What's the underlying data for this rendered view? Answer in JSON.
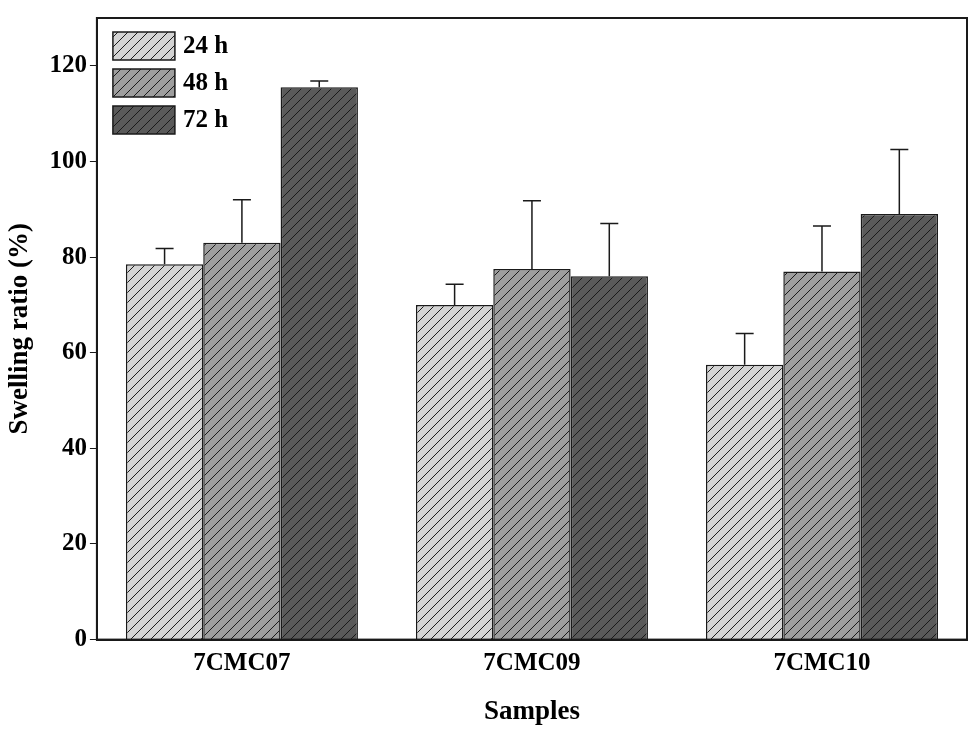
{
  "chart_data": {
    "type": "bar",
    "x_label": "Samples",
    "y_label": "Swelling ratio (%)",
    "categories": [
      "7CMC07",
      "7CMC09",
      "7CMC10"
    ],
    "series": [
      {
        "name": "24 h",
        "color": "#d4d4d4",
        "values": [
          78.5,
          70,
          57.5
        ],
        "errors": [
          3.3,
          4.3,
          6.5
        ]
      },
      {
        "name": "48 h",
        "color": "#9e9e9e",
        "values": [
          83,
          77.5,
          77
        ],
        "errors": [
          9,
          14.3,
          9.5
        ]
      },
      {
        "name": "72 h",
        "color": "#5a5a5a",
        "values": [
          115.5,
          76,
          89
        ],
        "errors": [
          1.3,
          11,
          13.5
        ]
      }
    ],
    "ylim": [
      0,
      130
    ],
    "yticks": [
      0,
      20,
      40,
      60,
      80,
      100,
      120
    ],
    "grid": false,
    "legend": "upper left"
  }
}
